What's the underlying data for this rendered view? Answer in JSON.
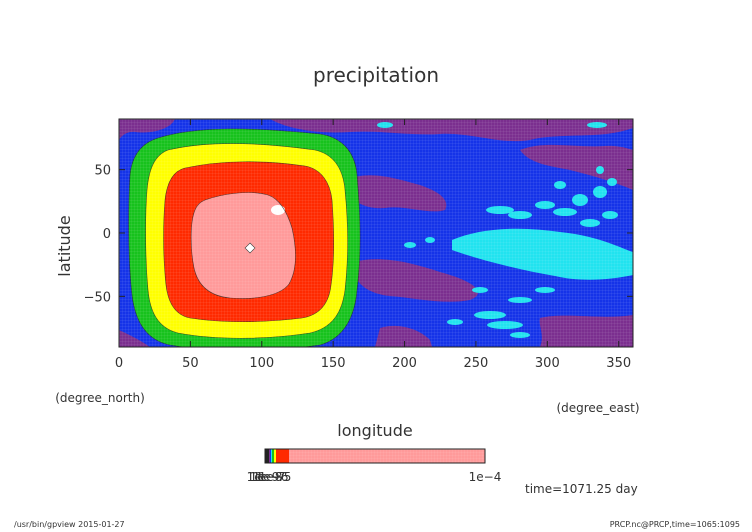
{
  "chart_data": {
    "type": "heatmap",
    "title": "precipitation",
    "xlabel": "longitude",
    "xunit": "(degree_east)",
    "ylabel": "latitude",
    "yunit": "(degree_north)",
    "xlim": [
      0,
      360
    ],
    "ylim": [
      -90,
      90
    ],
    "xticks": [
      "0",
      "50",
      "100",
      "150",
      "200",
      "250",
      "300",
      "350"
    ],
    "yticks": [
      "50",
      "0",
      "−50"
    ],
    "colorbar": {
      "labels": [
        "1e−9",
        "1e−8",
        "1e−7",
        "1e−6",
        "1e−5",
        "1e−4"
      ],
      "colors": [
        "#222222",
        "#7b2f8f",
        "#1533e8",
        "#21e3ef",
        "#17c21d",
        "#ffff00",
        "#ff2a00",
        "#ff9a9a"
      ]
    },
    "field": {
      "background_level": "1e-6 (blue)",
      "peak_center": {
        "lon": 95,
        "lat": 0
      },
      "peak_value": "1e-4"
    }
  },
  "annotations": {
    "time": "time=1071.25 day",
    "footer_left": "/usr/bin/gpview  2015-01-27",
    "footer_right": "PRCP.nc@PRCP,time=1065:1095"
  }
}
